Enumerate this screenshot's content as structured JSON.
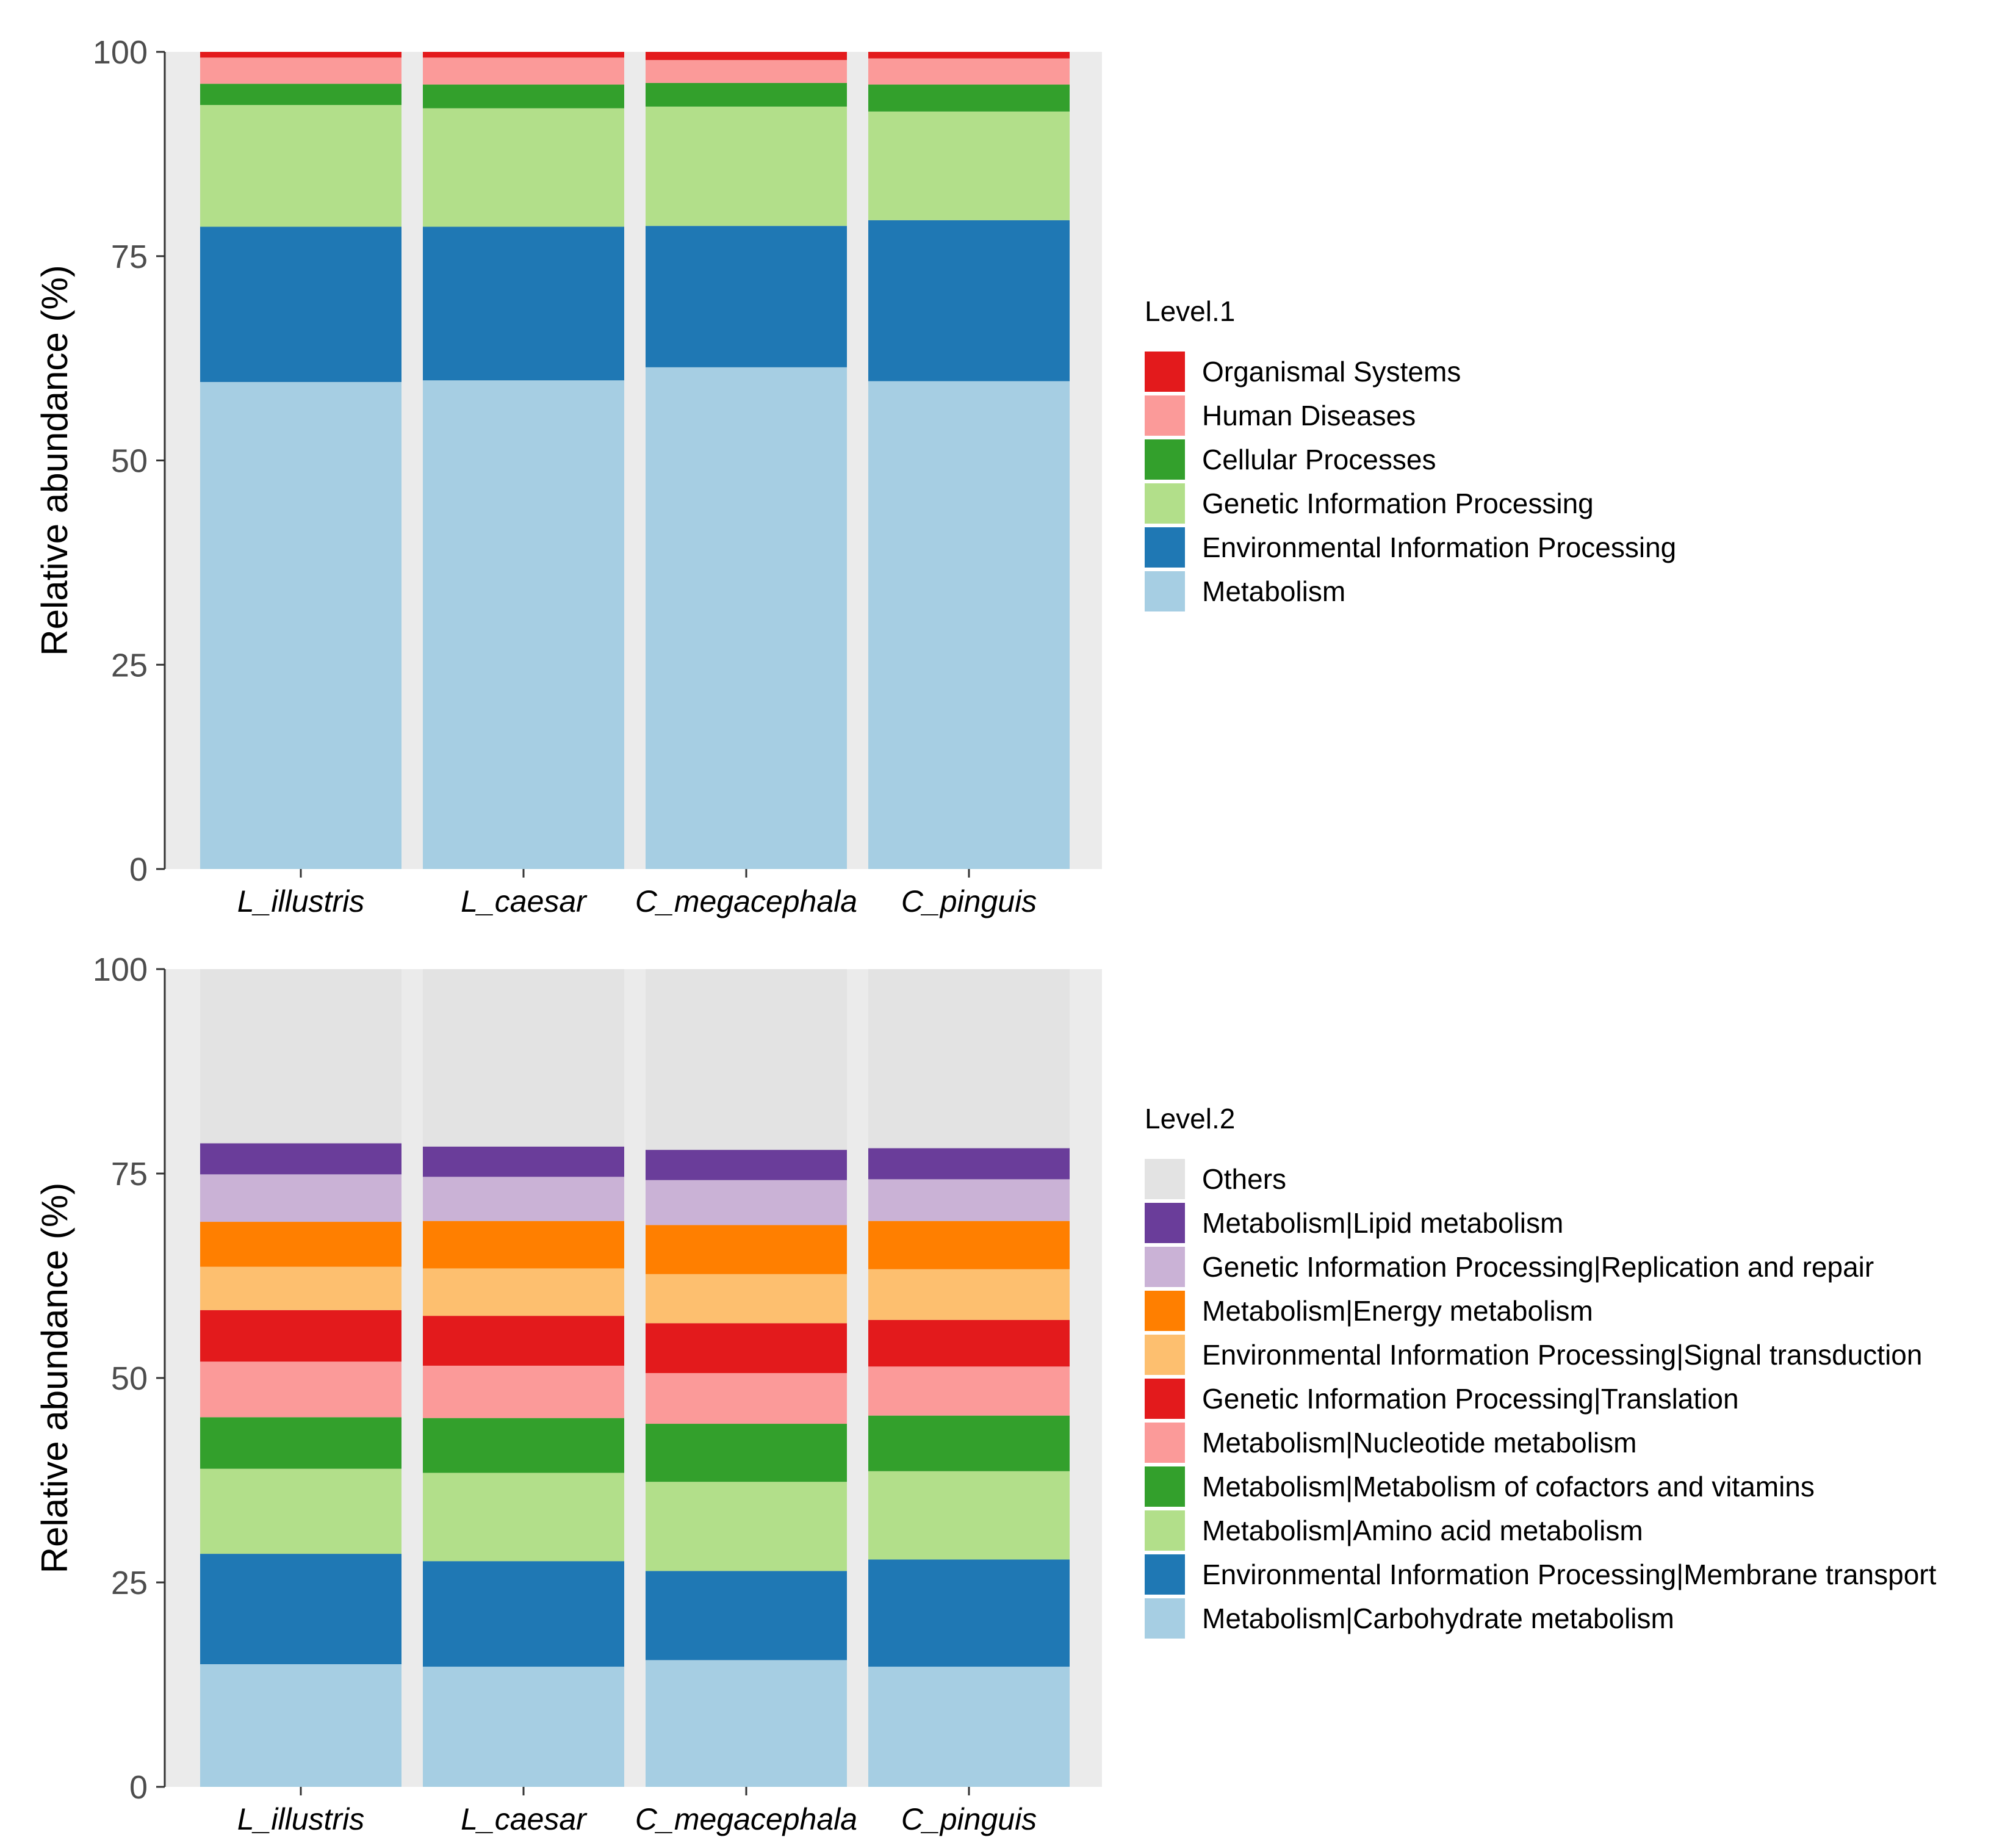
{
  "chart_data": [
    {
      "type": "bar",
      "stacked": true,
      "title": "",
      "xlabel": "",
      "ylabel": "Relative abundance (%)",
      "ylim": [
        0,
        100
      ],
      "yticks": [
        "0",
        "25",
        "50",
        "75",
        "100"
      ],
      "categories": [
        "L_illustris",
        "L_caesar",
        "C_megacephala",
        "C_pinguis"
      ],
      "legend_title": "Level.1",
      "legend_position": "right",
      "series": [
        {
          "name": "Metabolism",
          "color": "#a6cee3",
          "values": [
            59.6,
            59.8,
            61.4,
            59.7
          ]
        },
        {
          "name": "Environmental Information Processing",
          "color": "#1f78b4",
          "values": [
            19.0,
            18.8,
            17.3,
            19.7
          ]
        },
        {
          "name": "Genetic Information Processing",
          "color": "#b2df8a",
          "values": [
            14.9,
            14.5,
            14.6,
            13.3
          ]
        },
        {
          "name": "Cellular Processes",
          "color": "#33a02c",
          "values": [
            2.6,
            2.9,
            2.9,
            3.3
          ]
        },
        {
          "name": "Human Diseases",
          "color": "#fb9a99",
          "values": [
            3.2,
            3.3,
            2.8,
            3.2
          ]
        },
        {
          "name": "Organismal Systems",
          "color": "#e31a1c",
          "values": [
            0.7,
            0.7,
            1.0,
            0.8
          ]
        }
      ]
    },
    {
      "type": "bar",
      "stacked": true,
      "title": "",
      "xlabel": "",
      "ylabel": "Relative abundance (%)",
      "ylim": [
        0,
        100
      ],
      "yticks": [
        "0",
        "25",
        "50",
        "75",
        "100"
      ],
      "categories": [
        "L_illustris",
        "L_caesar",
        "C_megacephala",
        "C_pinguis"
      ],
      "legend_title": "Level.2",
      "legend_position": "right",
      "series": [
        {
          "name": "Metabolism|Carbohydrate metabolism",
          "color": "#a6cee3",
          "values": [
            15.0,
            14.7,
            15.5,
            14.7
          ]
        },
        {
          "name": "Environmental Information Processing|Membrane transport",
          "color": "#1f78b4",
          "values": [
            13.5,
            12.9,
            10.9,
            13.1
          ]
        },
        {
          "name": "Metabolism|Amino acid metabolism",
          "color": "#b2df8a",
          "values": [
            10.4,
            10.8,
            10.9,
            10.8
          ]
        },
        {
          "name": "Metabolism|Metabolism of cofactors and vitamins",
          "color": "#33a02c",
          "values": [
            6.3,
            6.7,
            7.1,
            6.8
          ]
        },
        {
          "name": "Metabolism|Nucleotide metabolism",
          "color": "#fb9a99",
          "values": [
            6.8,
            6.4,
            6.2,
            6.0
          ]
        },
        {
          "name": "Genetic Information Processing|Translation",
          "color": "#e31a1c",
          "values": [
            6.3,
            6.1,
            6.1,
            5.7
          ]
        },
        {
          "name": "Environmental Information Processing|Signal transduction",
          "color": "#fdbf6f",
          "values": [
            5.3,
            5.8,
            6.0,
            6.2
          ]
        },
        {
          "name": "Metabolism|Energy metabolism",
          "color": "#ff7f00",
          "values": [
            5.5,
            5.8,
            6.0,
            5.9
          ]
        },
        {
          "name": "Genetic Information Processing|Replication and repair",
          "color": "#cab2d6",
          "values": [
            5.8,
            5.4,
            5.5,
            5.1
          ]
        },
        {
          "name": "Metabolism|Lipid metabolism",
          "color": "#6a3d9a",
          "values": [
            3.8,
            3.7,
            3.7,
            3.8
          ]
        },
        {
          "name": "Others",
          "color": "#e3e3e3",
          "values": [
            21.3,
            21.7,
            22.1,
            21.9
          ]
        }
      ]
    }
  ]
}
